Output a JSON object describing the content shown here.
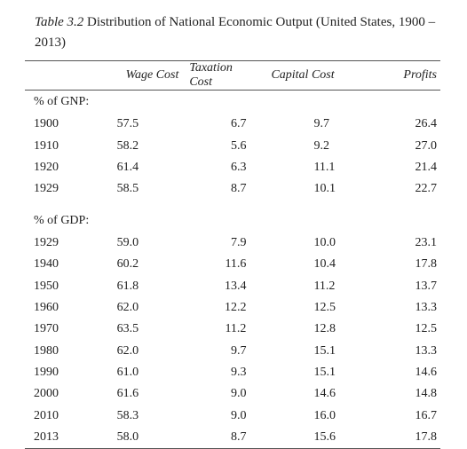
{
  "caption": {
    "label": "Table 3.2",
    "text": "Distribution of National Economic Output (United States, 1900 –2013)"
  },
  "table": {
    "columns": [
      "Wage Cost",
      "Taxation Cost",
      "Capital Cost",
      "Profits"
    ],
    "sections": [
      {
        "label": "% of GNP:",
        "rows": [
          [
            "1900",
            "57.5",
            "6.7",
            "9.7",
            "26.4"
          ],
          [
            "1910",
            "58.2",
            "5.6",
            "9.2",
            "27.0"
          ],
          [
            "1920",
            "61.4",
            "6.3",
            "11.1",
            "21.4"
          ],
          [
            "1929",
            "58.5",
            "8.7",
            "10.1",
            "22.7"
          ]
        ]
      },
      {
        "label": "% of GDP:",
        "rows": [
          [
            "1929",
            "59.0",
            "7.9",
            "10.0",
            "23.1"
          ],
          [
            "1940",
            "60.2",
            "11.6",
            "10.4",
            "17.8"
          ],
          [
            "1950",
            "61.8",
            "13.4",
            "11.2",
            "13.7"
          ],
          [
            "1960",
            "62.0",
            "12.2",
            "12.5",
            "13.3"
          ],
          [
            "1970",
            "63.5",
            "11.2",
            "12.8",
            "12.5"
          ],
          [
            "1980",
            "62.0",
            "9.7",
            "15.1",
            "13.3"
          ],
          [
            "1990",
            "61.0",
            "9.3",
            "15.1",
            "14.6"
          ],
          [
            "2000",
            "61.6",
            "9.0",
            "14.6",
            "14.8"
          ],
          [
            "2010",
            "58.3",
            "9.0",
            "16.0",
            "16.7"
          ],
          [
            "2013",
            "58.0",
            "8.7",
            "15.6",
            "17.8"
          ]
        ]
      }
    ]
  }
}
